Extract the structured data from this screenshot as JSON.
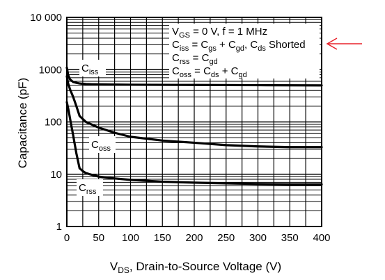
{
  "chart_data": {
    "type": "line",
    "xlabel": {
      "main": "V",
      "sub": "DS",
      "rest": ", Drain-to-Source Voltage (V)"
    },
    "ylabel": "Capacitance (pF)",
    "xlim": [
      0,
      400
    ],
    "ylim": [
      1,
      10000
    ],
    "yscale": "log",
    "grid": true,
    "x_ticks": [
      0,
      50,
      100,
      150,
      200,
      250,
      300,
      350,
      400
    ],
    "y_ticks": [
      {
        "value": 1,
        "label": "1"
      },
      {
        "value": 10,
        "label": "10"
      },
      {
        "value": 100,
        "label": "100"
      },
      {
        "value": 1000,
        "label": "1000"
      },
      {
        "value": 10000,
        "label": "10 000"
      }
    ],
    "conditions": [
      [
        {
          "t": "V"
        },
        {
          "t": "GS",
          "sub": true
        },
        {
          "t": " = 0 V, f = 1 MHz"
        }
      ],
      [
        {
          "t": "C"
        },
        {
          "t": "iss",
          "sub": true
        },
        {
          "t": " = C"
        },
        {
          "t": "gs",
          "sub": true
        },
        {
          "t": " + C"
        },
        {
          "t": "gd",
          "sub": true
        },
        {
          "t": ", C"
        },
        {
          "t": "ds",
          "sub": true
        },
        {
          "t": " Shorted"
        }
      ],
      [
        {
          "t": "C"
        },
        {
          "t": "rss",
          "sub": true
        },
        {
          "t": " = C"
        },
        {
          "t": "gd",
          "sub": true
        }
      ],
      [
        {
          "t": "C"
        },
        {
          "t": "oss",
          "sub": true
        },
        {
          "t": " = C"
        },
        {
          "t": "ds",
          "sub": true
        },
        {
          "t": " + C"
        },
        {
          "t": "gd",
          "sub": true
        }
      ]
    ],
    "series": [
      {
        "label": {
          "main": "C",
          "sub": "iss"
        },
        "x": [
          0,
          2,
          5,
          10,
          15,
          20,
          30,
          40,
          60,
          100,
          200,
          300,
          400
        ],
        "y": [
          1100,
          800,
          650,
          580,
          560,
          545,
          530,
          525,
          520,
          515,
          510,
          505,
          500
        ]
      },
      {
        "label": {
          "main": "C",
          "sub": "oss"
        },
        "x": [
          0,
          2,
          5,
          10,
          15,
          20,
          30,
          50,
          75,
          100,
          150,
          200,
          250,
          300,
          350,
          400
        ],
        "y": [
          750,
          550,
          420,
          300,
          200,
          130,
          100,
          78,
          62,
          52,
          44,
          40,
          36,
          34,
          33,
          33
        ]
      },
      {
        "label": {
          "main": "C",
          "sub": "rss"
        },
        "x": [
          0,
          3,
          6,
          10,
          15,
          20,
          25,
          30,
          40,
          50,
          75,
          100,
          150,
          200,
          250,
          300,
          350,
          400
        ],
        "y": [
          240,
          160,
          100,
          55,
          25,
          13,
          11.5,
          10.5,
          9.7,
          9.0,
          8.3,
          7.8,
          7.2,
          6.9,
          6.7,
          6.5,
          6.4,
          6.4
        ]
      }
    ],
    "annotation_color": "#e8222a"
  }
}
